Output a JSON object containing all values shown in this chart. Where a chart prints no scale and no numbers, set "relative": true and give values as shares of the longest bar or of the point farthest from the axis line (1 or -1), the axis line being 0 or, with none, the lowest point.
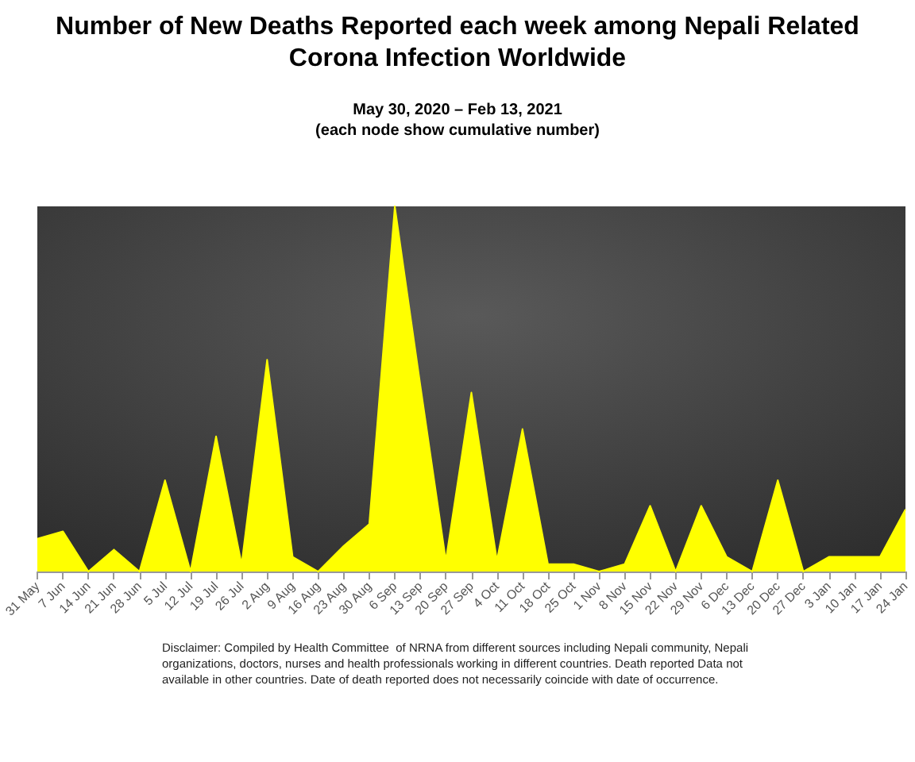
{
  "chart_data": {
    "type": "area",
    "title": "Number of New Deaths Reported each week among Nepali Related\nCorona Infection Worldwide",
    "subtitle": "May 30, 2020 – Feb 13, 2021\n(each node show cumulative number)",
    "categories": [
      "31 May",
      "7 Jun",
      "14 Jun",
      "21 Jun",
      "28 Jun",
      "5 Jul",
      "12 Jul",
      "19 Jul",
      "26 Jul",
      "2 Aug",
      "9 Aug",
      "16 Aug",
      "23 Aug",
      "30 Aug",
      "6 Sep",
      "13 Sep",
      "20 Sep",
      "27 Sep",
      "4 Oct",
      "11 Oct",
      "18 Oct",
      "25 Oct",
      "1 Nov",
      "8 Nov",
      "15 Nov",
      "22 Nov",
      "29 Nov",
      "6 Dec",
      "13 Dec",
      "20 Dec",
      "27 Dec",
      "3 Jan",
      "10 Jan",
      "17 Jan",
      "24 Jan"
    ],
    "values": [
      0.09,
      0.11,
      0,
      0.06,
      0,
      0.25,
      0,
      0.37,
      0.02,
      0.58,
      0.04,
      0,
      0.07,
      0.13,
      1,
      0.51,
      0.03,
      0.49,
      0.03,
      0.39,
      0.02,
      0.02,
      0,
      0.02,
      0.18,
      0,
      0.18,
      0.04,
      0,
      0.25,
      0,
      0.04,
      0.04,
      0.04,
      0.17
    ],
    "color": "#ffff00",
    "relative": true,
    "marker": "none",
    "grid": false,
    "annotations": [
      "Disclaimer: Compiled by Health Committee  of NRNA from different sources including Nepali community, Nepali organizations, doctors, nurses and health professionals working in different countries. Death reported Data not available in other countries. Date of death reported does not necessarily coincide with date of occurrence."
    ]
  }
}
